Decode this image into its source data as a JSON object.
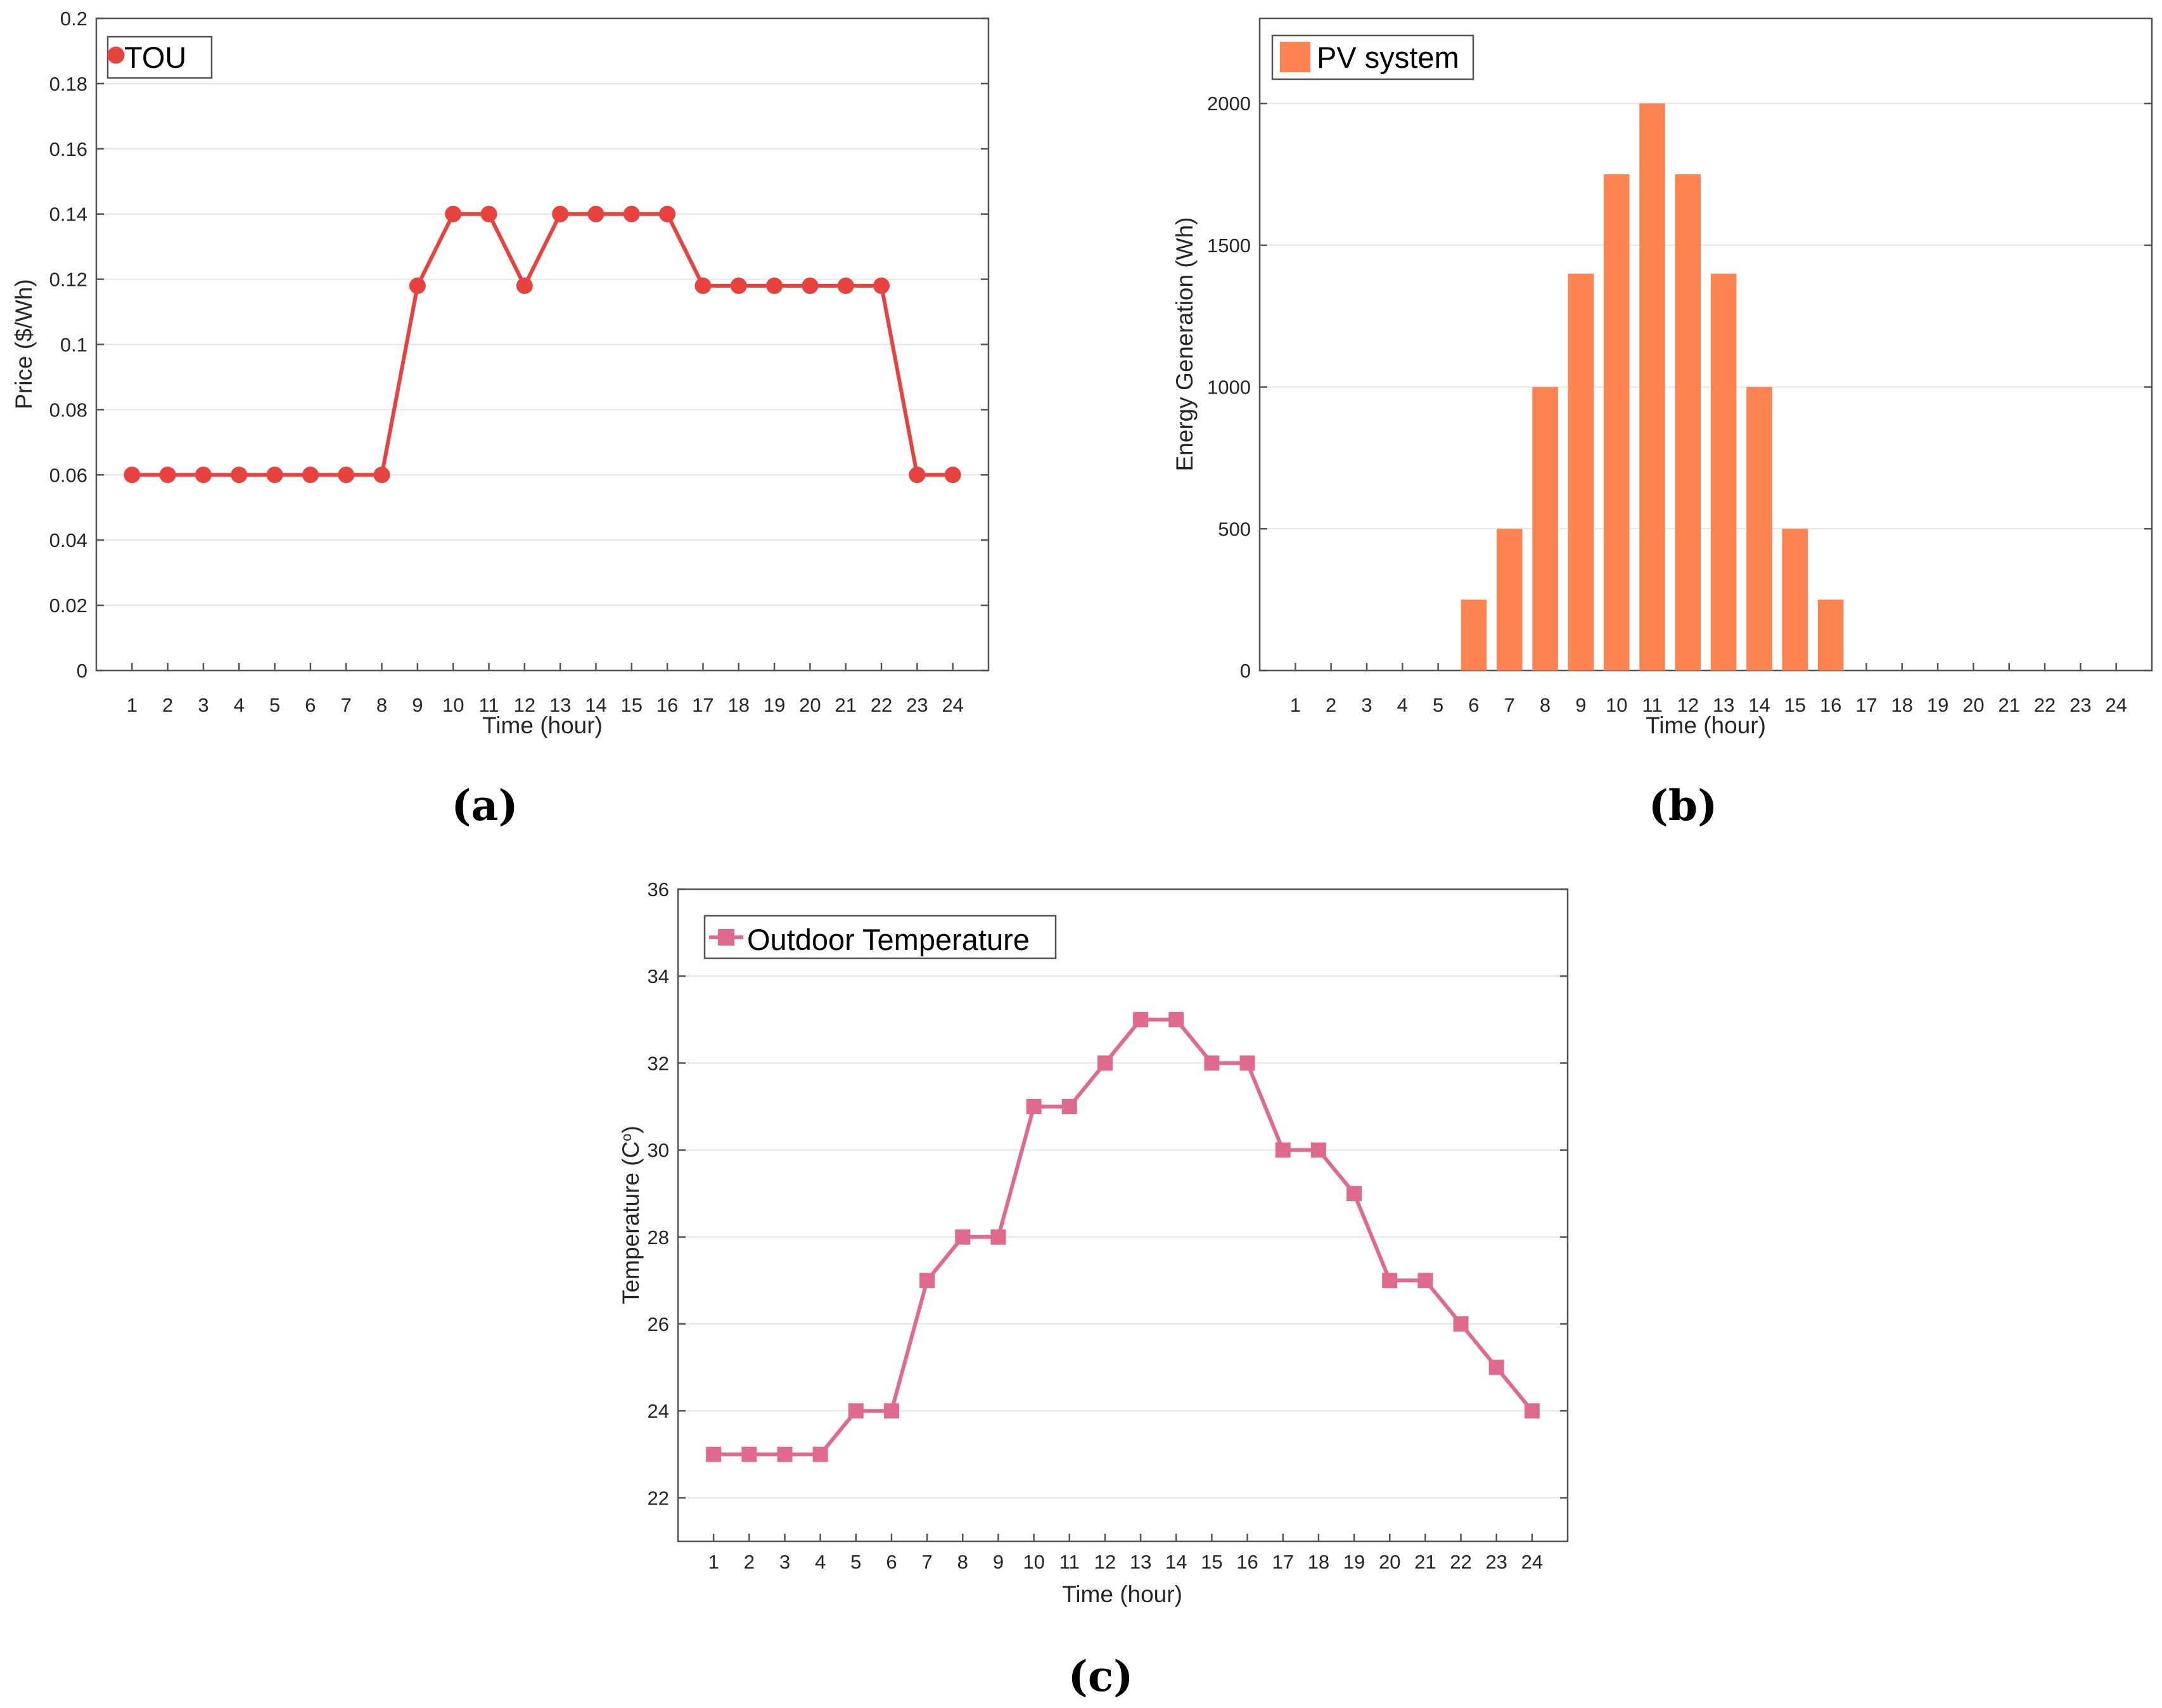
{
  "figure_captions": [
    "(a)",
    "(b)",
    "(c)"
  ],
  "chart_data": [
    {
      "type": "line",
      "title": "",
      "xlabel": "Time (hour)",
      "ylabel": "Price ($/Wh)",
      "x": [
        1,
        2,
        3,
        4,
        5,
        6,
        7,
        8,
        9,
        10,
        11,
        12,
        13,
        14,
        15,
        16,
        17,
        18,
        19,
        20,
        21,
        22,
        23,
        24
      ],
      "series": [
        {
          "name": "TOU",
          "values": [
            0.06,
            0.06,
            0.06,
            0.06,
            0.06,
            0.06,
            0.06,
            0.06,
            0.118,
            0.14,
            0.14,
            0.118,
            0.14,
            0.14,
            0.14,
            0.14,
            0.118,
            0.118,
            0.118,
            0.118,
            0.118,
            0.118,
            0.06,
            0.06
          ],
          "color": "#e8423f",
          "marker": "circle"
        }
      ],
      "ylim": [
        0,
        0.2
      ],
      "yticks": [
        0,
        0.02,
        0.04,
        0.06,
        0.08,
        0.1,
        0.12,
        0.14,
        0.16,
        0.18,
        0.2
      ],
      "ytick_labels": [
        "0",
        "0.02",
        "0.04",
        "0.06",
        "0.08",
        "0.1",
        "0.12",
        "0.14",
        "0.16",
        "0.18",
        "0.2"
      ],
      "grid": true,
      "legend": "top-left"
    },
    {
      "type": "bar",
      "title": "",
      "xlabel": "Time (hour)",
      "ylabel": "Energy Generation (Wh)",
      "categories": [
        "1",
        "2",
        "3",
        "4",
        "5",
        "6",
        "7",
        "8",
        "9",
        "10",
        "11",
        "12",
        "13",
        "14",
        "15",
        "16",
        "17",
        "18",
        "19",
        "20",
        "21",
        "22",
        "23",
        "24"
      ],
      "series": [
        {
          "name": "PV system",
          "values": [
            0,
            0,
            0,
            0,
            0,
            250,
            500,
            1000,
            1400,
            1750,
            2000,
            1750,
            1400,
            1000,
            500,
            250,
            0,
            0,
            0,
            0,
            0,
            0,
            0,
            0
          ],
          "color": "#fd8450"
        }
      ],
      "ylim": [
        0,
        2300
      ],
      "yticks": [
        0,
        500,
        1000,
        1500,
        2000
      ],
      "ytick_labels": [
        "0",
        "500",
        "1000",
        "1500",
        "2000"
      ],
      "grid": true,
      "legend": "top-left"
    },
    {
      "type": "line",
      "title": "",
      "xlabel": "Time (hour)",
      "ylabel": "Temperature (C",
      "ylabel_superscript": "o",
      "ylabel_suffix": ")",
      "x": [
        1,
        2,
        3,
        4,
        5,
        6,
        7,
        8,
        9,
        10,
        11,
        12,
        13,
        14,
        15,
        16,
        17,
        18,
        19,
        20,
        21,
        22,
        23,
        24
      ],
      "series": [
        {
          "name": "Outdoor Temperature",
          "values": [
            23,
            23,
            23,
            23,
            24,
            24,
            27,
            28,
            28,
            31,
            31,
            32,
            33,
            33,
            32,
            32,
            30,
            30,
            29,
            27,
            27,
            26,
            25,
            24
          ],
          "color": "#e06a8e",
          "marker": "square"
        }
      ],
      "ylim": [
        21,
        36
      ],
      "yticks": [
        22,
        24,
        26,
        28,
        30,
        32,
        34,
        36
      ],
      "ytick_labels": [
        "22",
        "24",
        "26",
        "28",
        "30",
        "32",
        "34",
        "36"
      ],
      "grid": true,
      "legend": "top-left"
    }
  ]
}
